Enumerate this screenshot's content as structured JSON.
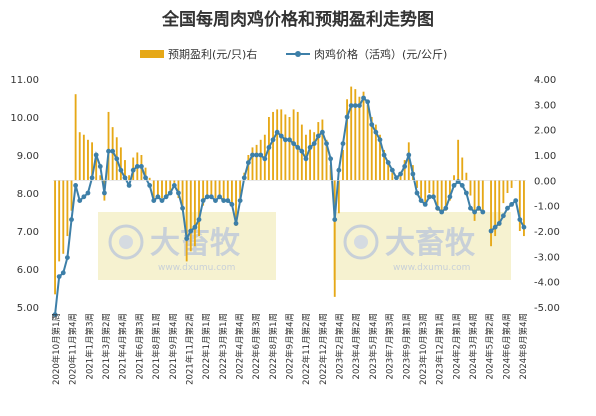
{
  "chart_data": {
    "type": "bar+line",
    "title": "全国每周肉鸡价格和预期盈利走势图",
    "legend": [
      {
        "name": "预期盈利(元/只)右",
        "color": "#e6a817",
        "kind": "bar"
      },
      {
        "name": "肉鸡价格（活鸡）(元/公斤)",
        "color": "#3d7fa8",
        "kind": "line"
      }
    ],
    "legend_position": "top",
    "left_axis": {
      "min": 5.0,
      "max": 11.0,
      "ticks": [
        "5.00",
        "6.00",
        "7.00",
        "8.00",
        "9.00",
        "10.00",
        "11.00"
      ]
    },
    "right_axis": {
      "min": -5.0,
      "max": 4.0,
      "ticks": [
        "-5.00",
        "-4.00",
        "-3.00",
        "-2.00",
        "-1.00",
        "0.00",
        "1.00",
        "2.00",
        "3.00",
        "4.00"
      ]
    },
    "x_tick_labels": [
      "2020年10月第1周",
      "2020年11月第4周",
      "2021年1月第3周",
      "2021年3月第2周",
      "2021年4月第4周",
      "2021年6月第3周",
      "2021年8月第1周",
      "2021年9月第4周",
      "2021年11月第2周",
      "2022年1月第1周",
      "2022年3月第1周",
      "2022年4月第4周",
      "2022年6月第3周",
      "2022年8月第1周",
      "2022年9月第4周",
      "2022年11月第2周",
      "2022年12月第4周",
      "2023年2月第4周",
      "2023年4月第2周",
      "2023年5月第4周",
      "2023年7月第3周",
      "2023年9月第1周",
      "2023年10月第3周",
      "2023年12月第1周",
      "2024年2月第1周",
      "2024年3月第4周",
      "2024年5月第2周",
      "2024年6月第4周",
      "2024年8月第4周"
    ],
    "price_series": {
      "name": "肉鸡价格（活鸡）(元/公斤)",
      "values": [
        4.8,
        5.8,
        5.9,
        6.3,
        7.3,
        8.2,
        7.8,
        7.9,
        8.0,
        8.4,
        9.0,
        8.7,
        8.0,
        9.1,
        9.1,
        8.9,
        8.6,
        8.4,
        8.2,
        8.6,
        8.7,
        8.7,
        8.4,
        8.2,
        7.8,
        7.9,
        7.8,
        7.9,
        8.0,
        8.2,
        8.0,
        7.6,
        6.8,
        7.0,
        7.1,
        7.3,
        7.8,
        7.9,
        7.9,
        7.8,
        7.9,
        7.8,
        7.8,
        7.7,
        7.2,
        7.8,
        8.4,
        8.8,
        9.0,
        9.0,
        9.0,
        8.9,
        9.2,
        9.4,
        9.6,
        9.5,
        9.4,
        9.4,
        9.3,
        9.2,
        9.1,
        8.9,
        9.2,
        9.3,
        9.5,
        9.6,
        9.3,
        8.9,
        7.3,
        8.6,
        9.3,
        10.0,
        10.3,
        10.3,
        10.3,
        10.5,
        10.4,
        9.8,
        9.6,
        9.4,
        9.0,
        8.8,
        8.6,
        8.4,
        8.5,
        8.7,
        9.0,
        8.5,
        8.0,
        7.8,
        7.7,
        7.9,
        7.9,
        7.6,
        7.5,
        7.6,
        7.9,
        8.2,
        8.3,
        8.2,
        8.0,
        7.6,
        7.5,
        7.6,
        7.5,
        null,
        7.0,
        7.1,
        7.2,
        7.4,
        7.6,
        7.7,
        7.8,
        7.3,
        7.1
      ]
    },
    "profit_series": {
      "name": "预期盈利(元/只)右",
      "values": [
        -4.5,
        -3.2,
        -2.9,
        -2.2,
        -1.2,
        3.4,
        1.9,
        1.8,
        1.6,
        1.5,
        0.9,
        0.2,
        -0.8,
        2.7,
        2.1,
        1.7,
        1.3,
        0.8,
        0.2,
        0.9,
        1.1,
        1.0,
        0.5,
        0.1,
        -0.8,
        -0.6,
        -0.7,
        -0.6,
        -0.4,
        -0.1,
        -0.7,
        -1.2,
        -3.2,
        -2.8,
        -2.6,
        -2.2,
        -1.0,
        -0.6,
        -0.6,
        -0.7,
        -0.7,
        -0.8,
        -0.8,
        -1.0,
        -1.8,
        -0.7,
        0.3,
        1.0,
        1.3,
        1.4,
        1.6,
        1.8,
        2.5,
        2.7,
        2.8,
        2.8,
        2.6,
        2.5,
        2.8,
        2.7,
        2.2,
        1.8,
        2.0,
        1.9,
        2.3,
        2.4,
        1.6,
        0.6,
        -4.6,
        -1.3,
        1.2,
        3.2,
        3.7,
        3.6,
        3.3,
        3.5,
        3.0,
        2.5,
        2.2,
        1.8,
        1.2,
        0.8,
        0.3,
        0.1,
        0.3,
        0.8,
        1.5,
        0.6,
        -0.3,
        -0.7,
        -0.9,
        -0.5,
        -0.6,
        -1.2,
        -1.3,
        -1.2,
        -0.8,
        0.2,
        1.6,
        0.9,
        0.3,
        -0.6,
        -1.6,
        -1.2,
        -1.3,
        null,
        -2.6,
        -2.2,
        -1.8,
        -0.9,
        -0.5,
        -0.3,
        0.0,
        -2.0,
        -2.2
      ]
    }
  },
  "watermark": {
    "brand": "大畜牧",
    "site": "www.dxumu.com"
  }
}
